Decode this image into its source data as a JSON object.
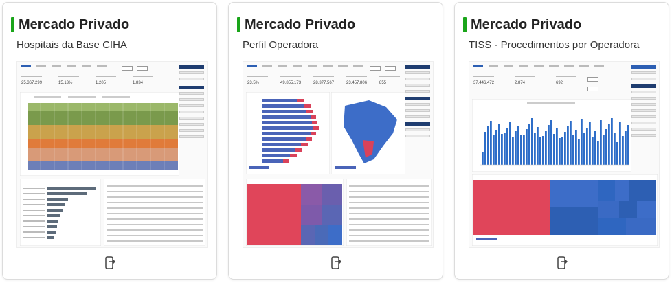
{
  "cards": [
    {
      "title": "Mercado Privado",
      "subtitle": "Hospitais da Base CIHA",
      "icon": "open-in-app-icon",
      "thumb": {
        "kpis": [
          "25.367.299",
          "15,13%",
          "1.205",
          "1.834"
        ]
      }
    },
    {
      "title": "Mercado Privado",
      "subtitle": "Perfil Operadora",
      "icon": "open-in-app-icon",
      "thumb": {
        "kpis": [
          "23,5%",
          "49.855.173",
          "28.377.567",
          "23.457.806",
          "855"
        ]
      }
    },
    {
      "title": "Mercado Privado",
      "subtitle": "TISS - Procedimentos por Operadora",
      "icon": "open-in-app-icon",
      "thumb": {
        "kpis": [
          "37.446.472",
          "2.874",
          "692"
        ]
      }
    }
  ],
  "colors": {
    "accent_bar": "#1aa51a",
    "nav_blue": "#1f3d70",
    "chart_blue": "#2d5fb3",
    "treemap_red": "#e0455a"
  }
}
